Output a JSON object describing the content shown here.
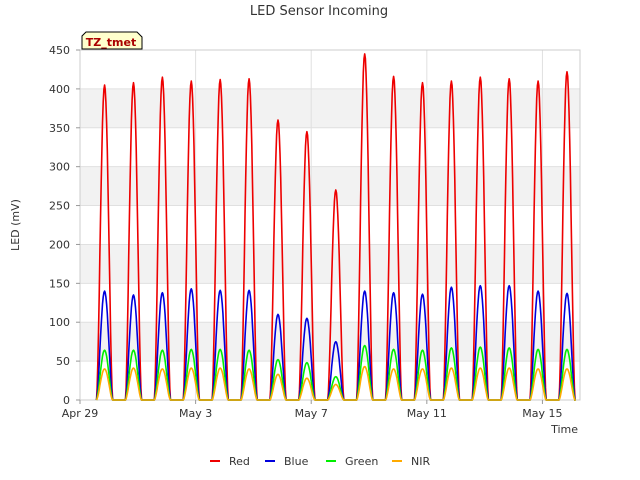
{
  "chart_data": {
    "type": "line",
    "title": "LED Sensor Incoming",
    "xlabel": "Time",
    "ylabel": "LED (mV)",
    "ylim": [
      0,
      450
    ],
    "xlim_days": [
      0,
      17.3
    ],
    "yticks": [
      0,
      50,
      100,
      150,
      200,
      250,
      300,
      350,
      400,
      450
    ],
    "xticks": [
      {
        "label": "Apr 29",
        "day": 0
      },
      {
        "label": "May 3",
        "day": 4
      },
      {
        "label": "May 7",
        "day": 8
      },
      {
        "label": "May 11",
        "day": 12
      },
      {
        "label": "May 15",
        "day": 16
      }
    ],
    "site_label": "TZ_tmet",
    "peak_days": [
      0.85,
      1.85,
      2.85,
      3.85,
      4.85,
      5.85,
      6.85,
      7.85,
      8.85,
      9.85,
      10.85,
      11.85,
      12.85,
      13.85,
      14.85,
      15.85,
      16.85
    ],
    "series": [
      {
        "name": "Red",
        "color": "#ee0000",
        "peaks": [
          405,
          408,
          415,
          410,
          412,
          413,
          360,
          345,
          270,
          445,
          416,
          408,
          410,
          415,
          413,
          410,
          422
        ]
      },
      {
        "name": "Blue",
        "color": "#0000dd",
        "peaks": [
          140,
          135,
          138,
          143,
          141,
          141,
          110,
          105,
          75,
          140,
          138,
          136,
          145,
          147,
          147,
          140,
          137
        ]
      },
      {
        "name": "Green",
        "color": "#00ee00",
        "peaks": [
          64,
          64,
          64,
          65,
          65,
          64,
          52,
          48,
          30,
          70,
          65,
          64,
          67,
          68,
          67,
          65,
          65
        ]
      },
      {
        "name": "NIR",
        "color": "#ffaa00",
        "peaks": [
          40,
          41,
          40,
          41,
          41,
          40,
          33,
          28,
          20,
          43,
          40,
          40,
          41,
          41,
          41,
          40,
          40
        ]
      }
    ]
  }
}
